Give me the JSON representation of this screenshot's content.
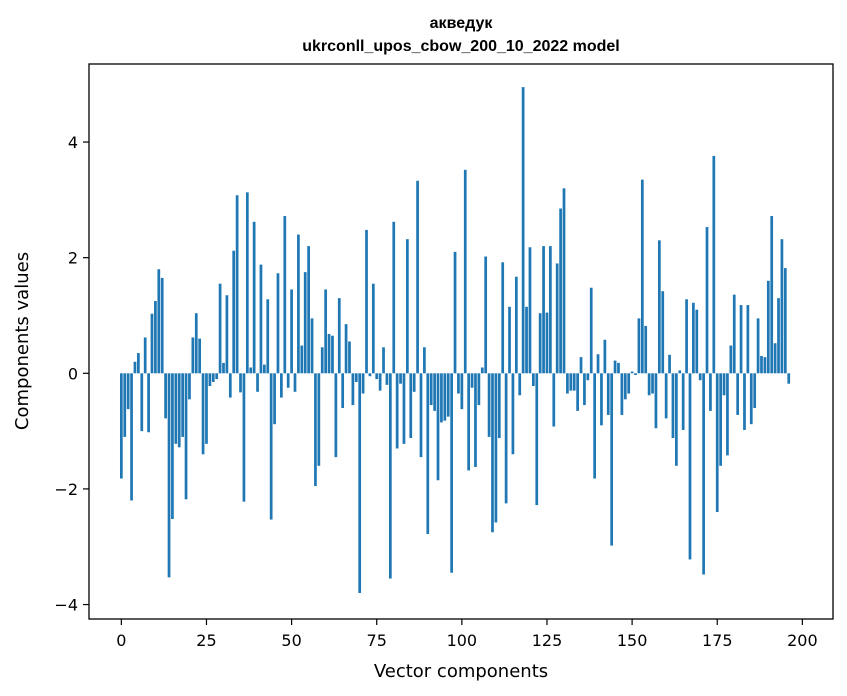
{
  "chart_data": {
    "type": "bar",
    "title": "акведук",
    "subtitle": "ukrconll_upos_cbow_200_10_2022 model",
    "xlabel": "Vector components",
    "ylabel": "Components values",
    "xlim": [
      -9.5,
      209
    ],
    "ylim": [
      -4.25,
      5.35
    ],
    "xticks": [
      0,
      25,
      50,
      75,
      100,
      125,
      150,
      175,
      200
    ],
    "yticks": [
      -4,
      -2,
      0,
      2,
      4
    ],
    "ytick_labels": [
      "−4",
      "−2",
      "0",
      "2",
      "4"
    ],
    "grid": false,
    "bar_color": "#1f77b4",
    "series": [
      {
        "values": [
          -1.82,
          -1.1,
          -0.62,
          -2.2,
          0.2,
          0.35,
          -1.0,
          0.62,
          -1.02,
          1.03,
          1.25,
          1.8,
          1.65,
          -0.78,
          -3.53,
          -2.52,
          -1.22,
          -1.28,
          -1.1,
          -2.18,
          -0.45,
          0.62,
          1.04,
          0.6,
          -1.4,
          -1.22,
          -0.22,
          -0.15,
          -0.1,
          1.55,
          0.18,
          1.35,
          -0.42,
          2.12,
          3.08,
          -0.33,
          -2.22,
          3.13,
          0.1,
          2.62,
          -0.32,
          1.88,
          0.15,
          1.28,
          -2.53,
          -0.88,
          1.73,
          -0.42,
          2.72,
          -0.25,
          1.45,
          -0.32,
          2.4,
          0.48,
          1.75,
          2.2,
          0.95,
          -1.95,
          -1.6,
          0.45,
          1.45,
          0.68,
          0.65,
          -1.45,
          1.3,
          -0.6,
          0.85,
          0.55,
          -0.55,
          -0.15,
          -3.8,
          -0.35,
          2.48,
          -0.05,
          1.55,
          -0.1,
          -0.3,
          0.45,
          -0.2,
          -3.55,
          2.62,
          -1.3,
          -0.18,
          -1.22,
          2.32,
          -1.12,
          -0.32,
          3.33,
          -1.45,
          0.45,
          -2.78,
          -0.55,
          -0.65,
          -1.85,
          -0.85,
          -0.82,
          -0.75,
          -3.45,
          2.1,
          -0.35,
          -0.62,
          3.52,
          -1.68,
          -0.25,
          -1.62,
          -0.55,
          0.1,
          2.02,
          -1.1,
          -2.75,
          -2.58,
          -1.12,
          1.92,
          -2.25,
          1.15,
          -1.4,
          1.67,
          -0.38,
          4.95,
          1.15,
          2.18,
          -0.22,
          -2.28,
          1.04,
          2.2,
          1.05,
          2.2,
          -0.92,
          1.9,
          2.85,
          3.2,
          -0.35,
          -0.3,
          -0.3,
          -0.65,
          0.28,
          -0.55,
          -0.12,
          1.48,
          -1.82,
          0.33,
          -0.9,
          0.58,
          -0.72,
          -2.98,
          0.22,
          0.18,
          -0.72,
          -0.45,
          -0.35,
          0.03,
          -0.03,
          0.95,
          3.35,
          0.82,
          -0.38,
          -0.35,
          -0.95,
          2.3,
          1.42,
          -0.78,
          0.32,
          -1.12,
          -1.6,
          0.05,
          -0.98,
          1.28,
          -3.22,
          1.22,
          1.1,
          -0.12,
          -3.48,
          2.53,
          -0.65,
          3.76,
          -2.4,
          -1.6,
          -0.38,
          -1.42,
          0.48,
          1.36,
          -0.72,
          1.18,
          -0.98,
          1.18,
          -0.88,
          -0.6,
          0.95,
          0.3,
          0.28,
          1.6,
          2.72,
          0.52,
          1.3,
          2.32,
          1.82,
          -0.18
        ]
      }
    ]
  }
}
